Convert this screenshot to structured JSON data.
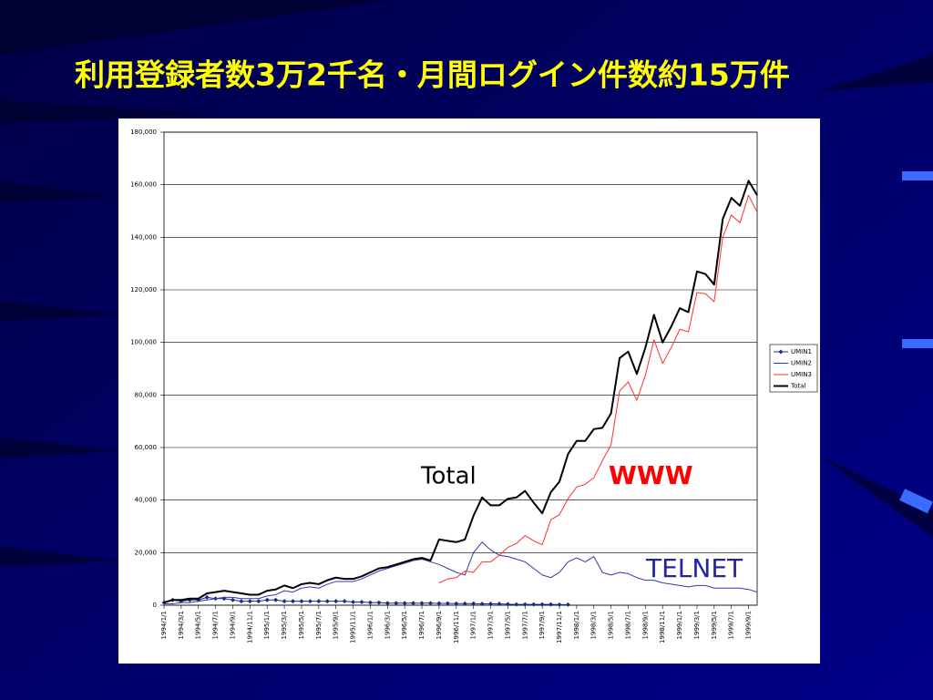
{
  "chart_data": {
    "type": "line",
    "title": "利用登録者数3万2千名・月間ログイン件数約15万件",
    "annotations": [
      "Total",
      "WWW",
      "TELNET"
    ],
    "categories": [
      "1994/1/1",
      null,
      "1994/3/1",
      null,
      "1994/5/1",
      null,
      "1994/7/1",
      null,
      "1994/9/1",
      null,
      "1994/11/1",
      null,
      "1995/1/1",
      null,
      "1995/3/1",
      null,
      "1995/5/1",
      null,
      "1995/7/1",
      null,
      "1995/9/1",
      null,
      "1995/11/1",
      null,
      "1996/1/1",
      null,
      "1996/3/1",
      null,
      "1996/5/1",
      null,
      "1996/7/1",
      null,
      "1996/9/1",
      null,
      "1996/11/1",
      null,
      "1997/1/1",
      null,
      "1997/3/1",
      null,
      "1997/5/1",
      null,
      "1997/7/1",
      null,
      "1997/9/1",
      null,
      "1997/11/1",
      null,
      "1998/1/1",
      null,
      "1998/3/1",
      null,
      "1998/5/1",
      null,
      "1998/7/1",
      null,
      "1998/9/1",
      null,
      "1998/11/1",
      null,
      "1999/1/1",
      null,
      "1999/3/1",
      null,
      "1999/5/1",
      null,
      "1999/7/1",
      null,
      "1999/9/1",
      null
    ],
    "series": [
      {
        "name": "UMIN1",
        "color": "#1c2a8c",
        "marker": "diamond",
        "linewidth": 1,
        "values": [
          1000,
          2000,
          1500,
          2000,
          2000,
          3000,
          2500,
          2500,
          2000,
          1500,
          1500,
          1500,
          2000,
          2000,
          1500,
          1500,
          1500,
          1500,
          1500,
          1500,
          1500,
          1500,
          1200,
          1200,
          1000,
          1000,
          800,
          800,
          800,
          800,
          800,
          800,
          700,
          700,
          600,
          600,
          600,
          500,
          500,
          500,
          400,
          300,
          300,
          300,
          300,
          300,
          200,
          200,
          null,
          null,
          null,
          null,
          null,
          null,
          null,
          null,
          null,
          null,
          null,
          null,
          null,
          null,
          null,
          null,
          null,
          null,
          null,
          null,
          null,
          null
        ]
      },
      {
        "name": "UMIN2",
        "color": "#3636b4",
        "linewidth": 1,
        "values": [
          500,
          500,
          1000,
          1000,
          1500,
          2000,
          2500,
          3000,
          3000,
          2500,
          2500,
          2500,
          3500,
          4000,
          5500,
          5000,
          6500,
          7000,
          6500,
          8000,
          9000,
          9000,
          9000,
          10000,
          11500,
          13000,
          14000,
          15000,
          16000,
          17000,
          17500,
          16500,
          15500,
          14000,
          12500,
          11500,
          20000,
          24000,
          21000,
          19000,
          18500,
          17500,
          16500,
          14000,
          11500,
          10500,
          12500,
          16500,
          18000,
          16500,
          18500,
          12500,
          11500,
          12500,
          12000,
          10500,
          9500,
          9500,
          8500,
          8000,
          7500,
          7000,
          7500,
          7500,
          6500,
          6500,
          6500,
          6500,
          6000,
          5000
        ]
      },
      {
        "name": "UMIN3",
        "color": "#ff3030",
        "linewidth": 1,
        "values": [
          null,
          null,
          null,
          null,
          null,
          null,
          null,
          null,
          null,
          null,
          null,
          null,
          null,
          null,
          null,
          null,
          null,
          null,
          null,
          null,
          null,
          null,
          null,
          null,
          null,
          null,
          null,
          null,
          null,
          null,
          null,
          null,
          8500,
          10000,
          10500,
          13000,
          12500,
          16500,
          16500,
          19000,
          22000,
          23500,
          26500,
          24500,
          23000,
          32500,
          34500,
          40500,
          45000,
          46000,
          48500,
          55000,
          61000,
          81500,
          85000,
          78000,
          87500,
          101000,
          92000,
          98000,
          105000,
          104000,
          119000,
          118500,
          115500,
          140000,
          148500,
          145500,
          156000,
          149500
        ]
      },
      {
        "name": "Total",
        "color": "#000000",
        "linewidth": 2,
        "values": [
          1000,
          2000,
          2000,
          2500,
          2500,
          4500,
          5000,
          5500,
          5000,
          4500,
          4000,
          4000,
          5500,
          6000,
          7500,
          6500,
          8000,
          8500,
          8000,
          9500,
          10500,
          10000,
          10000,
          11000,
          12500,
          14000,
          14500,
          15500,
          16500,
          17500,
          18000,
          17000,
          25000,
          24500,
          24000,
          25000,
          34000,
          41000,
          38000,
          38000,
          40500,
          41000,
          43500,
          39000,
          35000,
          43000,
          47000,
          57500,
          62500,
          62500,
          67000,
          67500,
          73000,
          94000,
          96500,
          88000,
          98000,
          110500,
          100000,
          106000,
          113000,
          111500,
          127000,
          126000,
          122000,
          147000,
          155000,
          152000,
          161500,
          156000
        ]
      }
    ],
    "ylim": [
      0,
      180000
    ],
    "yticks": [
      0,
      {
        "value": 20000,
        "label": "20,000"
      },
      {
        "value": 40000,
        "label": "40,000"
      },
      {
        "value": 60000,
        "label": "60,000"
      },
      {
        "value": 80000,
        "label": "80,000"
      },
      {
        "value": 100000,
        "label": "100,000"
      },
      {
        "value": 120000,
        "label": "120,000"
      },
      {
        "value": 140000,
        "label": "140,000"
      },
      {
        "value": 160000,
        "label": "160,000"
      },
      {
        "value": 180000,
        "label": "180,000"
      }
    ],
    "grid": true,
    "legend": "right"
  }
}
